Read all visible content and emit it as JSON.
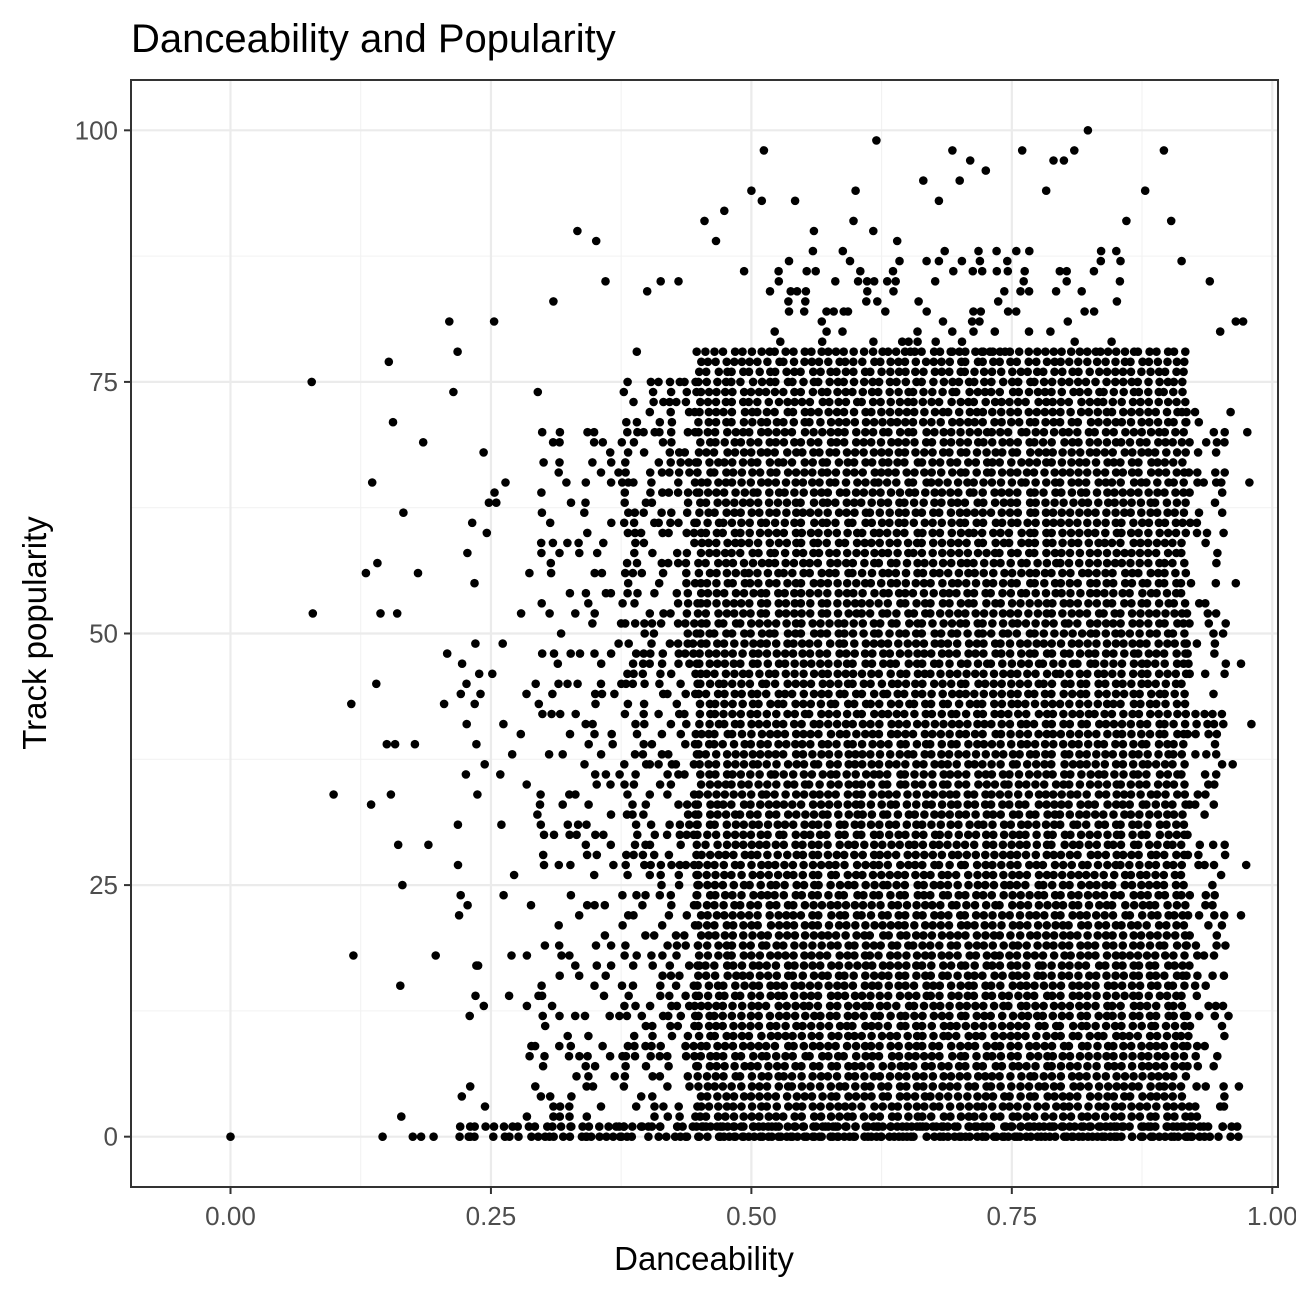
{
  "chart_data": {
    "type": "scatter",
    "title": "Danceability and Popularity",
    "xlabel": "Danceability",
    "ylabel": "Track popularity",
    "xlim": [
      -0.0955,
      1.0055
    ],
    "ylim": [
      -5,
      105
    ],
    "xticks": [
      0.0,
      0.25,
      0.5,
      0.75,
      1.0
    ],
    "xtick_labels": [
      "0.00",
      "0.25",
      "0.50",
      "0.75",
      "1.00"
    ],
    "yticks": [
      0,
      25,
      50,
      75,
      100
    ],
    "ytick_labels": [
      "0",
      "25",
      "50",
      "75",
      "100"
    ],
    "grid": true,
    "theme": "bw",
    "point_color": "#000000",
    "series": [
      {
        "points": [
          [
            0.0,
            0
          ],
          [
            0.078,
            75
          ],
          [
            0.079,
            52
          ],
          [
            0.099,
            34
          ],
          [
            0.116,
            43
          ],
          [
            0.118,
            18
          ],
          [
            0.13,
            56
          ],
          [
            0.135,
            33
          ],
          [
            0.136,
            65
          ],
          [
            0.14,
            45
          ],
          [
            0.141,
            57
          ],
          [
            0.144,
            52
          ],
          [
            0.146,
            0
          ],
          [
            0.15,
            39
          ],
          [
            0.152,
            77
          ],
          [
            0.154,
            34
          ],
          [
            0.156,
            71
          ],
          [
            0.158,
            39
          ],
          [
            0.16,
            52
          ],
          [
            0.161,
            29
          ],
          [
            0.163,
            15
          ],
          [
            0.164,
            2
          ],
          [
            0.165,
            25
          ],
          [
            0.166,
            62
          ],
          [
            0.175,
            0
          ],
          [
            0.177,
            39
          ],
          [
            0.18,
            56
          ],
          [
            0.183,
            0
          ],
          [
            0.185,
            69
          ],
          [
            0.19,
            29
          ],
          [
            0.195,
            0
          ],
          [
            0.197,
            18
          ],
          [
            0.205,
            43
          ],
          [
            0.208,
            48
          ],
          [
            0.21,
            81
          ],
          [
            0.214,
            74
          ],
          [
            0.218,
            78
          ],
          [
            0.222,
            4
          ],
          [
            0.226,
            36
          ],
          [
            0.232,
            61
          ],
          [
            0.236,
            17
          ],
          [
            0.24,
            44
          ],
          [
            0.244,
            37
          ],
          [
            0.248,
            63
          ],
          [
            0.253,
            81
          ],
          [
            0.264,
            65
          ],
          [
            0.295,
            74
          ],
          [
            0.31,
            83
          ],
          [
            0.333,
            90
          ],
          [
            0.342,
            0
          ],
          [
            0.351,
            89
          ],
          [
            0.36,
            85
          ],
          [
            0.374,
            0
          ],
          [
            0.39,
            78
          ],
          [
            0.4,
            84
          ],
          [
            0.413,
            85
          ],
          [
            0.43,
            85
          ],
          [
            0.455,
            91
          ],
          [
            0.466,
            89
          ],
          [
            0.474,
            92
          ],
          [
            0.493,
            86
          ],
          [
            0.5,
            94
          ],
          [
            0.51,
            93
          ],
          [
            0.512,
            98
          ],
          [
            0.542,
            93
          ],
          [
            0.56,
            90
          ],
          [
            0.598,
            91
          ],
          [
            0.6,
            94
          ],
          [
            0.617,
            90
          ],
          [
            0.62,
            99
          ],
          [
            0.64,
            89
          ],
          [
            0.665,
            95
          ],
          [
            0.68,
            93
          ],
          [
            0.693,
            98
          ],
          [
            0.7,
            95
          ],
          [
            0.71,
            97
          ],
          [
            0.725,
            96
          ],
          [
            0.76,
            98
          ],
          [
            0.783,
            94
          ],
          [
            0.79,
            97
          ],
          [
            0.8,
            97
          ],
          [
            0.81,
            98
          ],
          [
            0.823,
            100
          ],
          [
            0.86,
            91
          ],
          [
            0.878,
            94
          ],
          [
            0.896,
            98
          ],
          [
            0.903,
            91
          ],
          [
            0.913,
            87
          ],
          [
            0.94,
            85
          ],
          [
            0.95,
            80
          ],
          [
            0.96,
            72
          ],
          [
            0.965,
            81
          ],
          [
            0.972,
            81
          ],
          [
            0.976,
            70
          ],
          [
            0.978,
            65
          ],
          [
            0.98,
            41
          ],
          [
            0.975,
            27
          ],
          [
            0.97,
            22
          ],
          [
            0.968,
            5
          ],
          [
            0.96,
            0
          ],
          [
            0.955,
            19
          ],
          [
            0.965,
            55
          ],
          [
            0.97,
            47
          ],
          [
            0.962,
            37
          ],
          [
            0.958,
            12
          ],
          [
            0.95,
            3
          ],
          [
            0.945,
            63
          ]
        ],
        "density_clusters": [
          {
            "x_range": [
              0.45,
              0.92
            ],
            "y_range": [
              0,
              78
            ],
            "weight": 1.0
          },
          {
            "x_range": [
              0.38,
              0.45
            ],
            "y_range": [
              0,
              75
            ],
            "weight": 0.55
          },
          {
            "x_range": [
              0.92,
              0.96
            ],
            "y_range": [
              0,
              72
            ],
            "weight": 0.45
          },
          {
            "x_range": [
              0.3,
              0.38
            ],
            "y_range": [
              0,
              70
            ],
            "weight": 0.25
          },
          {
            "x_range": [
              0.22,
              0.3
            ],
            "y_range": [
              0,
              68
            ],
            "weight": 0.08
          },
          {
            "x_range": [
              0.52,
              0.86
            ],
            "y_range": [
              78,
              88
            ],
            "weight": 0.25
          },
          {
            "x_range": [
              0.22,
              0.97
            ],
            "y_range": [
              0,
              1
            ],
            "weight": 0.9
          }
        ]
      }
    ]
  }
}
